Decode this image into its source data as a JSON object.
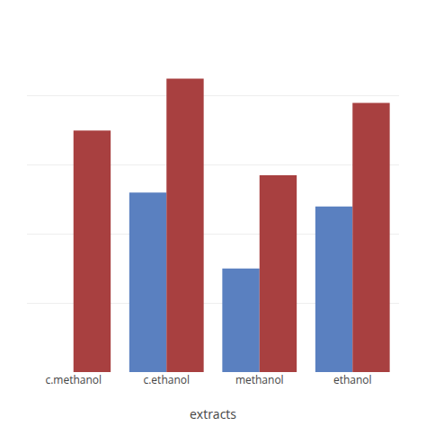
{
  "chart_data": {
    "type": "bar",
    "categories": [
      "c.methanol",
      "c.ethanol",
      "methanol",
      "ethanol"
    ],
    "series": [
      {
        "color": "#5A80C0",
        "values": [
          0,
          52,
          30,
          48
        ]
      },
      {
        "color": "#A84040",
        "values": [
          70,
          85,
          57,
          78
        ]
      }
    ],
    "xlabel": "extracts",
    "ylim": [
      0,
      100
    ],
    "yticks": [
      0,
      20,
      40,
      60,
      80,
      100
    ],
    "grid": true,
    "tick_labels": "x"
  }
}
